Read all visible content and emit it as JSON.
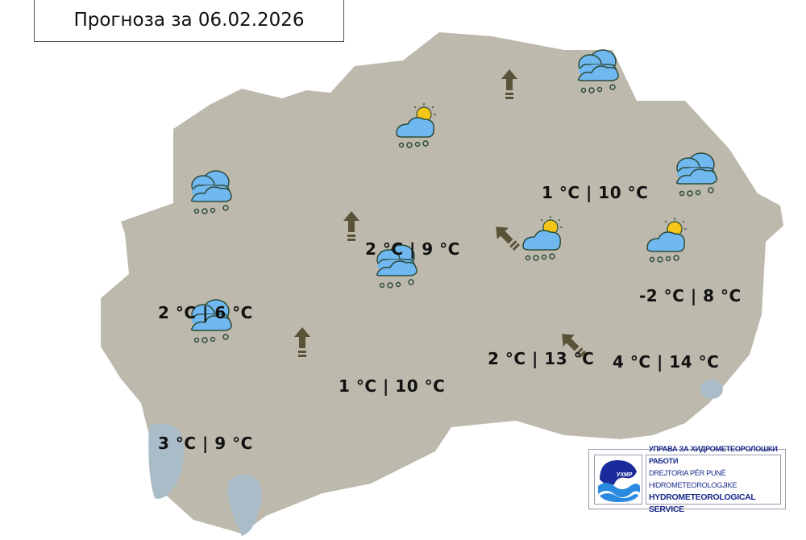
{
  "title": "Прогноза за 06.02.2026",
  "colors": {
    "land": "#bdbaad",
    "lake": "#a9bcc8",
    "text": "#111111",
    "arrow": "#5a5238",
    "cloud": "#6fb8f0",
    "sun": "#f5c518"
  },
  "temperatures": [
    {
      "id": "west",
      "label": "2 °C | 6 °C"
    },
    {
      "id": "center-north",
      "label": "2 °C | 9 °C"
    },
    {
      "id": "northeast",
      "label": "1 °C | 10 °C"
    },
    {
      "id": "east",
      "label": "-2 °C | 8 °C"
    },
    {
      "id": "center",
      "label": "1 °C | 10 °C"
    },
    {
      "id": "southeast-1",
      "label": "2 °C | 13 °C"
    },
    {
      "id": "southeast-2",
      "label": "4 °C | 14 °C"
    },
    {
      "id": "southwest",
      "label": "3 °C | 9 °C"
    }
  ],
  "weather_icons": [
    "rain-cloud-icon",
    "sun-cloud-rain-icon"
  ],
  "wind_arrows": [
    "north",
    "north",
    "north",
    "northwest",
    "northwest"
  ],
  "logo": {
    "abbr": "УХМР",
    "line1": "УПРАВА ЗА ХИДРОМЕТЕОРОЛОШКИ РАБОТИ",
    "line2": "DREJTORIA PËR PUNË HIDROMETEOROLOGJIKE",
    "line3": "HYDROMETEOROLOGICAL SERVICE"
  }
}
